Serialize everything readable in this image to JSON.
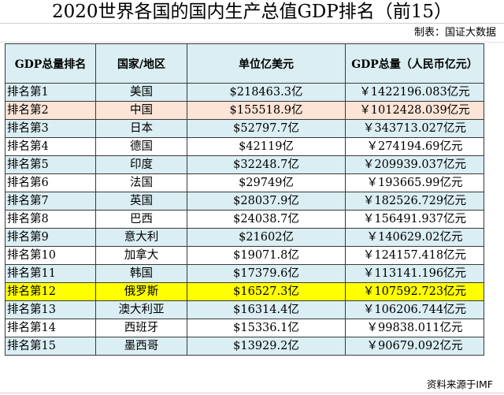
{
  "title": "2020世界各国的国内生产总值GDP排名（前15）",
  "maker_note": "制表：国证大数据",
  "source_note": "资料来源于IMF",
  "colors": {
    "header_bg": "#daeef3",
    "row_blue": "#daeef3",
    "row_china": "#fce4d6",
    "row_russia": "#ffff00"
  },
  "table": {
    "headers": [
      "GDP总量排名",
      "国家/地区",
      "单位亿美元",
      "GDP总量（人民币亿元）"
    ],
    "rows": [
      {
        "rank": "排名第1",
        "country": "美国",
        "usd": "$218463.3亿",
        "cny": "￥1422196.083亿元",
        "highlight": "blue"
      },
      {
        "rank": "排名第2",
        "country": "中国",
        "usd": "$155518.9亿",
        "cny": "￥1012428.039亿元",
        "highlight": "china"
      },
      {
        "rank": "排名第3",
        "country": "日本",
        "usd": "$52797.7亿",
        "cny": "￥343713.027亿元",
        "highlight": "blue"
      },
      {
        "rank": "排名第4",
        "country": "德国",
        "usd": "$42119亿",
        "cny": "￥274194.69亿元",
        "highlight": "none"
      },
      {
        "rank": "排名第5",
        "country": "印度",
        "usd": "$32248.7亿",
        "cny": "￥209939.037亿元",
        "highlight": "blue"
      },
      {
        "rank": "排名第6",
        "country": "法国",
        "usd": "$29749亿",
        "cny": "￥193665.99亿元",
        "highlight": "none"
      },
      {
        "rank": "排名第7",
        "country": "英国",
        "usd": "$28037.9亿",
        "cny": "￥182526.729亿元",
        "highlight": "blue"
      },
      {
        "rank": "排名第8",
        "country": "巴西",
        "usd": "$24038.7亿",
        "cny": "￥156491.937亿元",
        "highlight": "none"
      },
      {
        "rank": "排名第9",
        "country": "意大利",
        "usd": "$21602亿",
        "cny": "￥140629.02亿元",
        "highlight": "blue"
      },
      {
        "rank": "排名第10",
        "country": "加拿大",
        "usd": "$19071.8亿",
        "cny": "￥124157.418亿元",
        "highlight": "none"
      },
      {
        "rank": "排名第11",
        "country": "韩国",
        "usd": "$17379.6亿",
        "cny": "￥113141.196亿元",
        "highlight": "blue"
      },
      {
        "rank": "排名第12",
        "country": "俄罗斯",
        "usd": "$16527.3亿",
        "cny": "￥107592.723亿元",
        "highlight": "russia"
      },
      {
        "rank": "排名第13",
        "country": "澳大利亚",
        "usd": "$16314.4亿",
        "cny": "￥106206.744亿元",
        "highlight": "blue"
      },
      {
        "rank": "排名第14",
        "country": "西班牙",
        "usd": "$15336.1亿",
        "cny": "￥99838.011亿元",
        "highlight": "none"
      },
      {
        "rank": "排名第15",
        "country": "墨西哥",
        "usd": "$13929.2亿",
        "cny": "￥90679.092亿元",
        "highlight": "blue"
      }
    ]
  }
}
